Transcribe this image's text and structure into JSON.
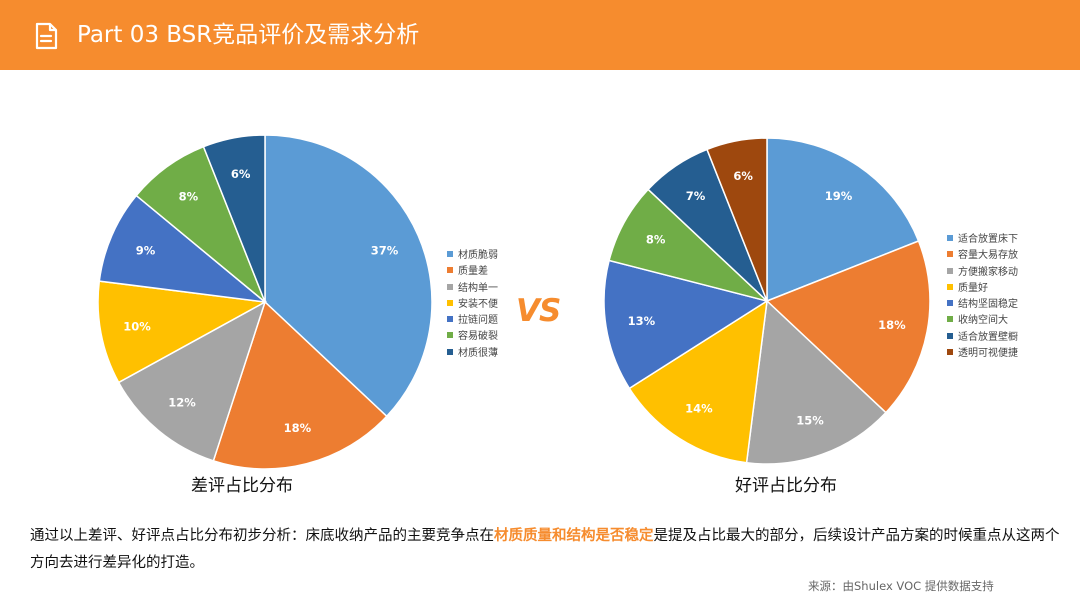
{
  "header": {
    "title": "Part 03  BSR竞品评价及需求分析",
    "icon": "document-icon",
    "background": "#f68c2e"
  },
  "vs_label": "VS",
  "chart_data": [
    {
      "type": "pie",
      "caption": "差评占比分布",
      "legend_position": "right",
      "slices": [
        {
          "label": "材质脆弱",
          "value": 37,
          "display": "37%",
          "color": "#5b9bd5"
        },
        {
          "label": "质量差",
          "value": 18,
          "display": "18%",
          "color": "#ed7d31"
        },
        {
          "label": "结构单一",
          "value": 12,
          "display": "12%",
          "color": "#a5a5a5"
        },
        {
          "label": "安装不便",
          "value": 10,
          "display": "10%",
          "color": "#ffc000"
        },
        {
          "label": "拉链问题",
          "value": 9,
          "display": "9%",
          "color": "#4472c4"
        },
        {
          "label": "容易破裂",
          "value": 8,
          "display": "8%",
          "color": "#70ad47"
        },
        {
          "label": "材质很薄",
          "value": 6,
          "display": "6%",
          "color": "#255e91"
        }
      ]
    },
    {
      "type": "pie",
      "caption": "好评占比分布",
      "legend_position": "right",
      "slices": [
        {
          "label": "适合放置床下",
          "value": 19,
          "display": "19%",
          "color": "#5b9bd5"
        },
        {
          "label": "容量大易存放",
          "value": 18,
          "display": "18%",
          "color": "#ed7d31"
        },
        {
          "label": "方便搬家移动",
          "value": 15,
          "display": "15%",
          "color": "#a5a5a5"
        },
        {
          "label": "质量好",
          "value": 14,
          "display": "14%",
          "color": "#ffc000"
        },
        {
          "label": "结构坚固稳定",
          "value": 13,
          "display": "13%",
          "color": "#4472c4"
        },
        {
          "label": "收纳空间大",
          "value": 8,
          "display": "8%",
          "color": "#70ad47"
        },
        {
          "label": "适合放置壁橱",
          "value": 7,
          "display": "7%",
          "color": "#255e91"
        },
        {
          "label": "透明可视便捷",
          "value": 6,
          "display": "6%",
          "color": "#9e480e"
        }
      ]
    }
  ],
  "analysis": {
    "before": "通过以上差评、好评点占比分布初步分析：床底收纳产品的主要竞争点在",
    "highlight": "材质质量和结构是否稳定",
    "after": "是提及占比最大的部分，后续设计产品方案的时候重点从这两个方向去进行差异化的打造。"
  },
  "source": "来源：由Shulex VOC 提供数据支持"
}
